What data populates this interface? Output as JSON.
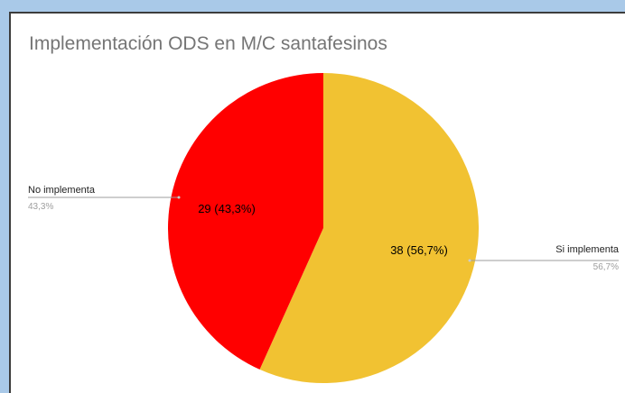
{
  "chart_data": {
    "type": "pie",
    "title": "Implementación ODS en M/C santafesinos",
    "slices": [
      {
        "name": "Si implementa",
        "value": 38,
        "percent_label": "56,7%",
        "inner_label": "38 (56,7%)",
        "color": "#f1c232"
      },
      {
        "name": "No implementa",
        "value": 29,
        "percent_label": "43,3%",
        "inner_label": "29 (43,3%)",
        "color": "#ff0000"
      }
    ],
    "legend": "labeled callouts"
  }
}
